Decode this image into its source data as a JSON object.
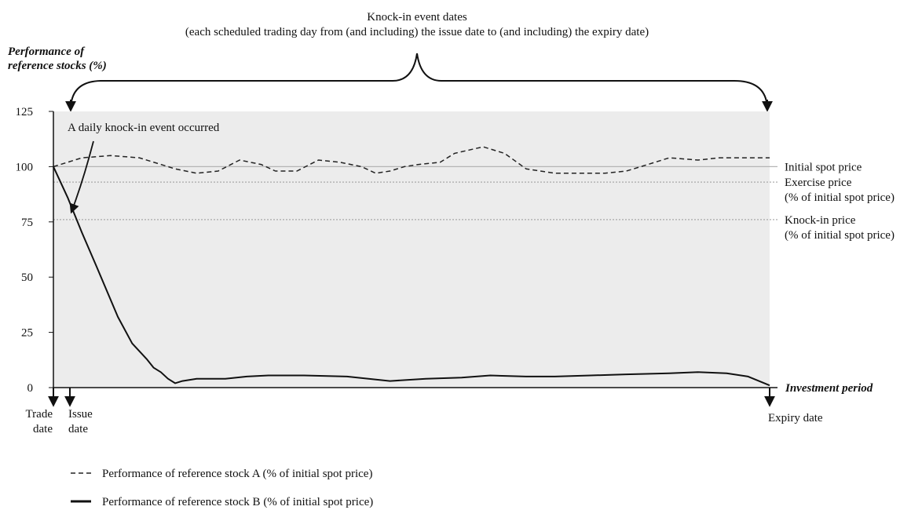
{
  "chart_data": {
    "type": "line",
    "title": "Knock-in event dates",
    "subtitle": "(each scheduled trading day from (and including) the issue date to (and including) the expiry date)",
    "ylabel_line1": "Performance of",
    "ylabel_line2": "reference stocks (%)",
    "xlabel": "Investment period",
    "ylim": [
      0,
      125
    ],
    "y_ticks": [
      "0",
      "25",
      "50",
      "75",
      "100",
      "125"
    ],
    "y_tick_values": [
      0,
      25,
      50,
      75,
      100,
      125
    ],
    "reference_lines": [
      {
        "value": 100,
        "label": [
          "Initial spot price"
        ]
      },
      {
        "value": 93,
        "label": [
          "Exercise price",
          "(% of initial spot price)"
        ]
      },
      {
        "value": 76,
        "label": [
          "Knock-in price",
          "(% of initial spot price)"
        ]
      }
    ],
    "x_markers": {
      "trade_date": [
        "Trade",
        "date"
      ],
      "issue_date": [
        "Issue",
        "date"
      ],
      "expiry_date": [
        "Expiry date"
      ]
    },
    "annotation": "A daily knock-in event occurred",
    "series": [
      {
        "legend": "Performance of reference stock A (% of initial spot price)",
        "style": "dashed",
        "color": "#222222",
        "points": [
          [
            0,
            100
          ],
          [
            0.04,
            104
          ],
          [
            0.08,
            105
          ],
          [
            0.12,
            104
          ],
          [
            0.17,
            99
          ],
          [
            0.2,
            97
          ],
          [
            0.23,
            98
          ],
          [
            0.26,
            103
          ],
          [
            0.29,
            101
          ],
          [
            0.31,
            98
          ],
          [
            0.34,
            98
          ],
          [
            0.37,
            103
          ],
          [
            0.4,
            102
          ],
          [
            0.43,
            100
          ],
          [
            0.45,
            97
          ],
          [
            0.47,
            98
          ],
          [
            0.49,
            100
          ],
          [
            0.51,
            101
          ],
          [
            0.54,
            102
          ],
          [
            0.56,
            106
          ],
          [
            0.6,
            109
          ],
          [
            0.63,
            106
          ],
          [
            0.66,
            99
          ],
          [
            0.7,
            97
          ],
          [
            0.74,
            97
          ],
          [
            0.77,
            97
          ],
          [
            0.8,
            98
          ],
          [
            0.83,
            101
          ],
          [
            0.86,
            104
          ],
          [
            0.9,
            103
          ],
          [
            0.93,
            104
          ],
          [
            0.97,
            104
          ],
          [
            1.0,
            104
          ]
        ]
      },
      {
        "legend": "Performance of reference stock B (% of initial spot price)",
        "style": "solid",
        "color": "#111111",
        "points": [
          [
            0,
            100
          ],
          [
            0.02,
            86
          ],
          [
            0.04,
            70
          ],
          [
            0.06,
            55
          ],
          [
            0.09,
            32
          ],
          [
            0.11,
            20
          ],
          [
            0.13,
            13
          ],
          [
            0.14,
            9
          ],
          [
            0.15,
            7
          ],
          [
            0.16,
            4
          ],
          [
            0.17,
            2
          ],
          [
            0.18,
            3
          ],
          [
            0.2,
            4
          ],
          [
            0.24,
            4
          ],
          [
            0.27,
            5
          ],
          [
            0.3,
            5.5
          ],
          [
            0.35,
            5.5
          ],
          [
            0.41,
            5
          ],
          [
            0.44,
            4
          ],
          [
            0.47,
            3
          ],
          [
            0.52,
            4
          ],
          [
            0.57,
            4.5
          ],
          [
            0.61,
            5.5
          ],
          [
            0.66,
            5
          ],
          [
            0.7,
            5
          ],
          [
            0.75,
            5.5
          ],
          [
            0.8,
            6
          ],
          [
            0.86,
            6.5
          ],
          [
            0.9,
            7
          ],
          [
            0.94,
            6.5
          ],
          [
            0.97,
            5
          ],
          [
            1.0,
            1
          ]
        ]
      }
    ]
  }
}
